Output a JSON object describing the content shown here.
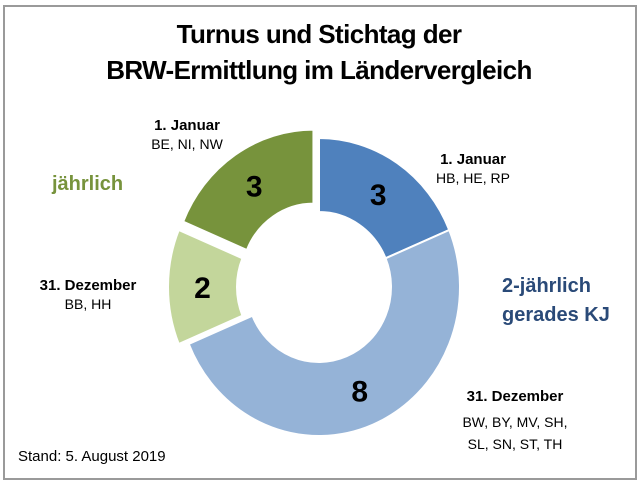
{
  "chart_data": {
    "type": "pie",
    "variant": "donut",
    "title": "Turnus und Stichtag der BRW-Ermittlung im Ländervergleich",
    "title_lines": [
      "Turnus und Stichtag der",
      "BRW-Ermittlung im Ländervergleich"
    ],
    "start_angle_deg": 0,
    "direction": "clockwise",
    "slices": [
      {
        "group": "2-jährlich gerades KJ",
        "date": "1. Januar",
        "states": "HB, HE, RP",
        "value": 3,
        "color": "#4F81BD",
        "exploded": false
      },
      {
        "group": "2-jährlich gerades KJ",
        "date": "31. Dezember",
        "states": "BW, BY, MV, SH, SL, SN, ST, TH",
        "value": 8,
        "color": "#95B3D7",
        "exploded": false
      },
      {
        "group": "jährlich",
        "date": "31. Dezember",
        "states": "BB, HH",
        "value": 2,
        "color": "#C3D69B",
        "exploded": true
      },
      {
        "group": "jährlich",
        "date": "1. Januar",
        "states": "BE, NI, NW",
        "value": 3,
        "color": "#77933C",
        "exploded": true
      }
    ],
    "total": 16
  },
  "labels": {
    "green_top": {
      "date": "1. Januar",
      "states": "BE, NI, NW"
    },
    "blue_top": {
      "date": "1. Januar",
      "states": "HB, HE, RP"
    },
    "green_left": {
      "date": "31. Dezember",
      "states": "BB, HH"
    },
    "blue_bottom": {
      "date": "31. Dezember",
      "states_line1": "BW, BY, MV, SH,",
      "states_line2": "SL, SN, ST, TH"
    }
  },
  "groups": {
    "annual": {
      "text": "jährlich",
      "color": "#77933C"
    },
    "biennial": {
      "line1": "2-jährlich",
      "line2": "gerades KJ",
      "color": "#2A4A78"
    }
  },
  "footer": {
    "stand": "Stand: 5. August 2019"
  }
}
